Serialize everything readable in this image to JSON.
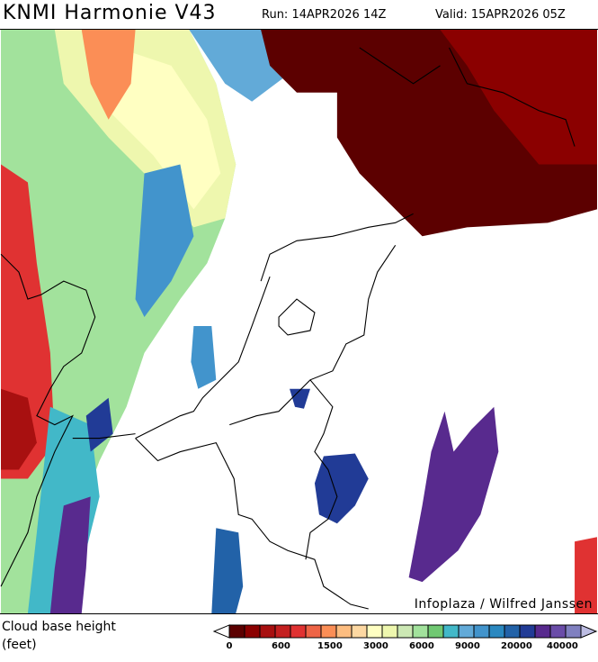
{
  "header": {
    "title": "KNMI Harmonie V43",
    "run": "Run: 14APR2026 14Z",
    "valid": "Valid: 15APR2026 05Z"
  },
  "map": {
    "credit": "Infoplaza / Wilfred Janssen"
  },
  "legend": {
    "variable": "Cloud base height",
    "unit": "(feet)",
    "colors": [
      "#5c0000",
      "#8b0000",
      "#a81010",
      "#c42020",
      "#e03232",
      "#ee6446",
      "#fb8e56",
      "#fdbd80",
      "#fdd8a2",
      "#ffffc2",
      "#eef7ae",
      "#cce8b4",
      "#a2e29c",
      "#70c872",
      "#42b8c8",
      "#62aad8",
      "#4294cc",
      "#2a88c0",
      "#2262a8",
      "#213b96",
      "#582a8e",
      "#6a4ca8",
      "#8080c0"
    ],
    "under_color": "#ffffff",
    "over_color": "#bcbce2",
    "labels": [
      "0",
      "600",
      "1500",
      "3000",
      "6000",
      "9000",
      "20000",
      "40000"
    ]
  }
}
